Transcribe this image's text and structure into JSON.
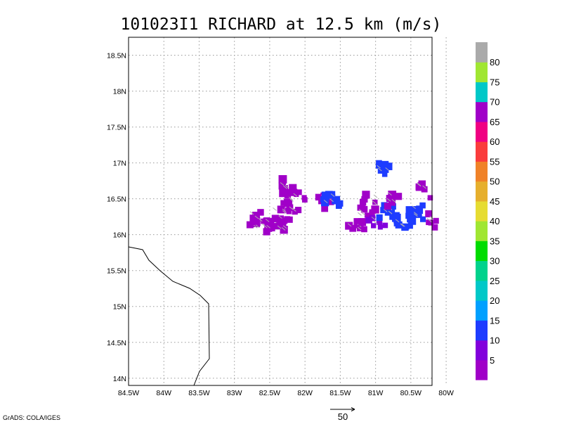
{
  "chart_data": {
    "type": "heatmap",
    "title": "101023I1 RICHARD at 12.5 km (m/s)",
    "x_ticks": [
      "84.5W",
      "84W",
      "83.5W",
      "83W",
      "82.5W",
      "82W",
      "81.5W",
      "81W",
      "80.5W",
      "80W"
    ],
    "y_ticks": [
      "14N",
      "14.5N",
      "15N",
      "15.5N",
      "16N",
      "16.5N",
      "17N",
      "17.5N",
      "18N",
      "18.5N"
    ],
    "xlim": [
      -84.5,
      -80.2
    ],
    "ylim": [
      13.9,
      18.75
    ],
    "grid": true,
    "colorbar": {
      "labels": [
        "5",
        "10",
        "15",
        "20",
        "25",
        "30",
        "35",
        "40",
        "45",
        "50",
        "55",
        "60",
        "65",
        "70",
        "75",
        "80"
      ],
      "colors": [
        "#a000c8",
        "#8200dc",
        "#1e3cff",
        "#00a0ff",
        "#00c8c8",
        "#00d28c",
        "#00dc00",
        "#a0e632",
        "#e6dc32",
        "#e6af2d",
        "#f08228",
        "#fa3c3c",
        "#f00082",
        "#a000c8",
        "#00c8c8",
        "#a0e632",
        "#aaaaaa"
      ]
    },
    "wind_cells": [
      {
        "lon": -82.67,
        "lat": 16.22,
        "speed": 5
      },
      {
        "lon": -82.6,
        "lat": 16.15,
        "speed": 5
      },
      {
        "lon": -82.52,
        "lat": 16.08,
        "speed": 5
      },
      {
        "lon": -82.42,
        "lat": 16.16,
        "speed": 5
      },
      {
        "lon": -82.33,
        "lat": 16.27,
        "speed": 5
      },
      {
        "lon": -82.25,
        "lat": 16.12,
        "speed": 5
      },
      {
        "lon": -82.2,
        "lat": 16.35,
        "speed": 5
      },
      {
        "lon": -82.3,
        "lat": 16.68,
        "speed": 5
      },
      {
        "lon": -82.13,
        "lat": 16.52,
        "speed": 5
      },
      {
        "lon": -81.7,
        "lat": 16.45,
        "speed": 5
      },
      {
        "lon": -81.62,
        "lat": 16.5,
        "speed": 15
      },
      {
        "lon": -81.28,
        "lat": 16.1,
        "speed": 5
      },
      {
        "lon": -81.15,
        "lat": 16.28,
        "speed": 5
      },
      {
        "lon": -81.05,
        "lat": 16.45,
        "speed": 5
      },
      {
        "lon": -80.98,
        "lat": 16.15,
        "speed": 10
      },
      {
        "lon": -80.86,
        "lat": 16.92,
        "speed": 15
      },
      {
        "lon": -80.82,
        "lat": 16.3,
        "speed": 15
      },
      {
        "lon": -80.7,
        "lat": 16.5,
        "speed": 5
      },
      {
        "lon": -80.6,
        "lat": 16.15,
        "speed": 15
      },
      {
        "lon": -80.45,
        "lat": 16.3,
        "speed": 15
      },
      {
        "lon": -80.3,
        "lat": 16.62,
        "speed": 5
      },
      {
        "lon": -80.25,
        "lat": 16.2,
        "speed": 5
      }
    ],
    "vector_reference": "50"
  },
  "footer": {
    "credit": "GrADS: COLA/IGES"
  }
}
